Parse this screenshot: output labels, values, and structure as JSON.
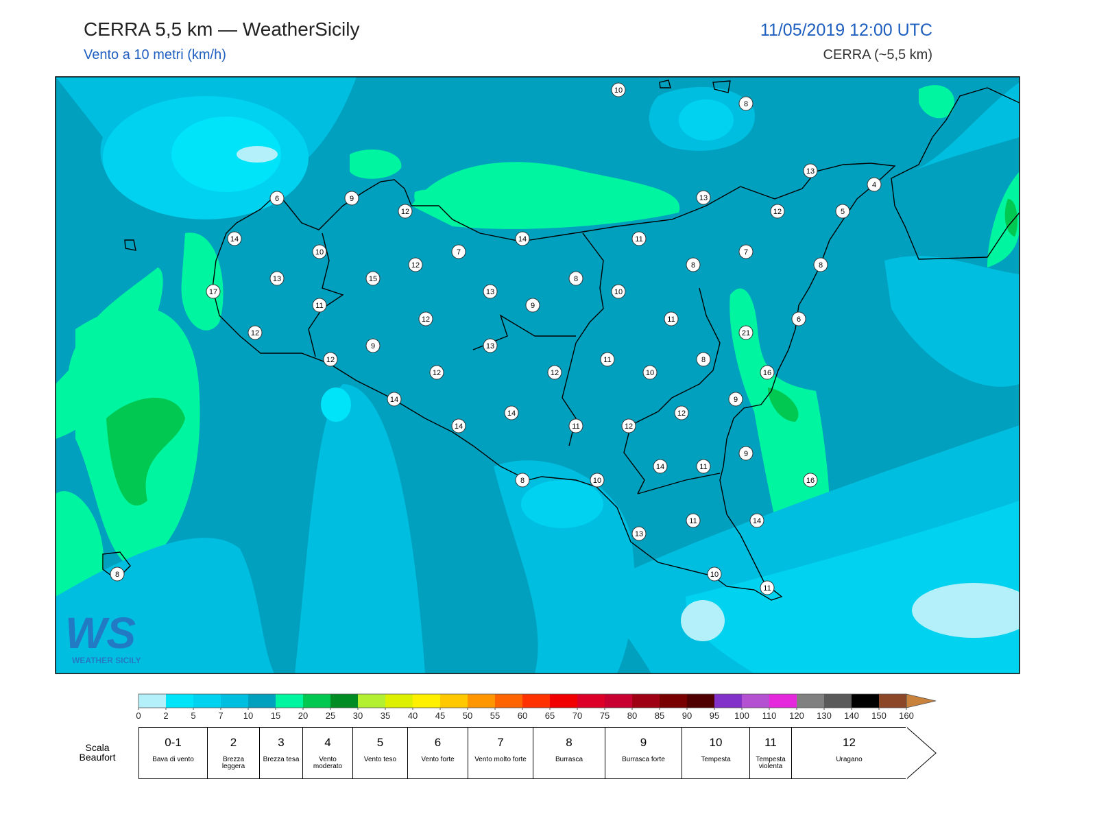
{
  "header": {
    "title": "CERRA 5,5 km — WeatherSicily",
    "subtitle": "Vento a 10 metri (km/h)",
    "datetime": "11/05/2019 12:00 UTC",
    "model": "CERRA (~5,5 km)"
  },
  "map": {
    "stations": [
      10,
      8,
      13,
      4,
      6,
      9,
      13,
      12,
      12,
      5,
      14,
      14,
      11,
      10,
      7,
      7,
      12,
      8,
      8,
      13,
      15,
      8,
      13,
      10,
      17,
      11,
      9,
      12,
      11,
      6,
      12,
      21,
      9,
      13,
      11,
      12,
      8,
      12,
      12,
      10,
      16,
      14,
      9,
      14,
      12,
      14,
      11,
      12,
      9,
      14,
      11,
      8,
      10,
      16,
      11,
      14,
      13,
      10,
      11,
      8
    ]
  },
  "logo": {
    "text": "WS",
    "caption": "WEATHER SICILY"
  },
  "colorbar": {
    "ticks": [
      0,
      2,
      5,
      7,
      10,
      15,
      20,
      25,
      30,
      35,
      40,
      45,
      50,
      55,
      60,
      65,
      70,
      75,
      80,
      85,
      90,
      95,
      100,
      110,
      120,
      130,
      140,
      150,
      160
    ],
    "colors": [
      "#b4f0fa",
      "#00e4fa",
      "#00d2f0",
      "#00bee0",
      "#00a0be",
      "#00f5a0",
      "#00c850",
      "#008c23",
      "#b4f032",
      "#dcf000",
      "#fff000",
      "#ffc800",
      "#ff9600",
      "#ff6400",
      "#ff3200",
      "#f00000",
      "#dc0028",
      "#c80032",
      "#a00014",
      "#780000",
      "#500000",
      "#8232c8",
      "#b450d2",
      "#e628dc",
      "#808080",
      "#5a5a5a",
      "#000000",
      "#8c4628"
    ]
  },
  "beaufort": {
    "label": "Scala Beaufort",
    "classes": [
      {
        "force": "0-1",
        "name": "Bava di vento"
      },
      {
        "force": 2,
        "name": "Brezza leggera"
      },
      {
        "force": 3,
        "name": "Brezza tesa"
      },
      {
        "force": 4,
        "name": "Vento moderato"
      },
      {
        "force": 5,
        "name": "Vento teso"
      },
      {
        "force": 6,
        "name": "Vento forte"
      },
      {
        "force": 7,
        "name": "Vento molto forte"
      },
      {
        "force": 8,
        "name": "Burrasca"
      },
      {
        "force": 9,
        "name": "Burrasca forte"
      },
      {
        "force": 10,
        "name": "Tempesta"
      },
      {
        "force": 11,
        "name": "Tempesta violenta"
      },
      {
        "force": 12,
        "name": "Uragano"
      }
    ]
  }
}
